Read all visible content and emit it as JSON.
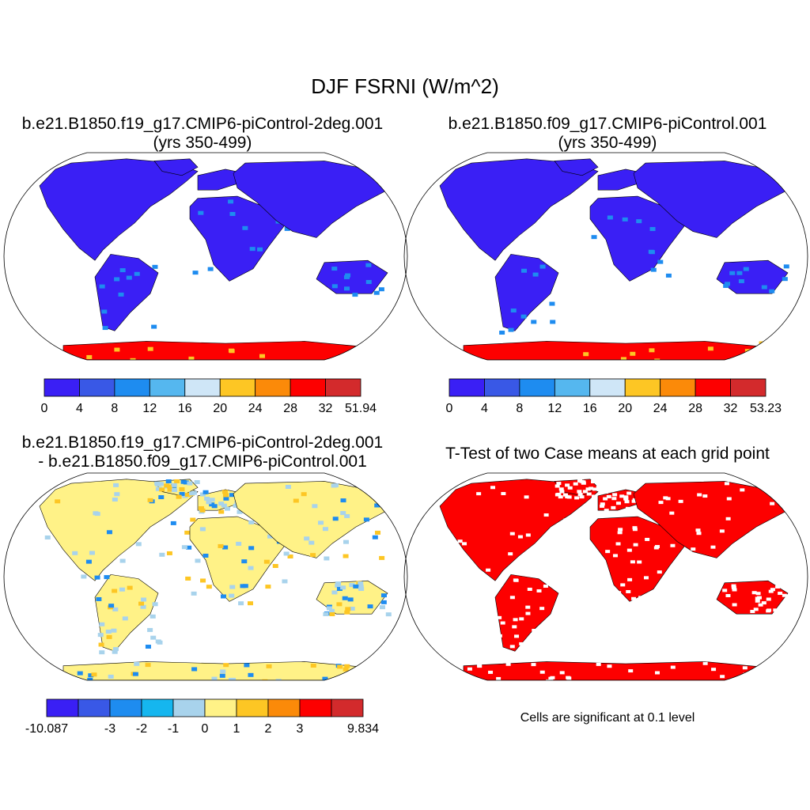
{
  "title": "DJF FSRNI (W/m^2)",
  "panels": [
    {
      "id": "case1",
      "title_line1": "b.e21.B1850.f19_g17.CMIP6-piControl-2deg.001",
      "title_line2": "(yrs 350-499)",
      "colorbar": {
        "colors": [
          "#3a1ff5",
          "#3958e6",
          "#1e8cf0",
          "#55b7ef",
          "#cfe6f7",
          "#fdc624",
          "#fb8a09",
          "#fd0000",
          "#d32a2c"
        ],
        "labels": [
          "0",
          "4",
          "8",
          "12",
          "16",
          "20",
          "24",
          "28",
          "32",
          "51.94"
        ]
      }
    },
    {
      "id": "case2",
      "title_line1": "b.e21.B1850.f09_g17.CMIP6-piControl.001",
      "title_line2": "(yrs 350-499)",
      "colorbar": {
        "colors": [
          "#3a1ff5",
          "#3958e6",
          "#1e8cf0",
          "#55b7ef",
          "#cfe6f7",
          "#fdc624",
          "#fb8a09",
          "#fd0000",
          "#d32a2c"
        ],
        "labels": [
          "0",
          "4",
          "8",
          "12",
          "16",
          "20",
          "24",
          "28",
          "32",
          "53.23"
        ]
      }
    },
    {
      "id": "diff",
      "title_line1": "b.e21.B1850.f19_g17.CMIP6-piControl-2deg.001",
      "title_line2": "- b.e21.B1850.f09_g17.CMIP6-piControl.001",
      "colorbar": {
        "colors": [
          "#3a1ff5",
          "#3958e6",
          "#1e8cf0",
          "#15b6ef",
          "#a8d3ec",
          "#fff287",
          "#fdc624",
          "#fb8a09",
          "#fd0000",
          "#d32a2c"
        ],
        "labels": [
          "-10.087",
          "",
          "-3",
          "-2",
          "-1",
          "0",
          "1",
          "2",
          "3",
          "",
          "9.834"
        ]
      }
    },
    {
      "id": "ttest",
      "title_line1": "T-Test of two Case means at each grid point",
      "footnote": "Cells are significant at 0.1 level"
    }
  ],
  "map_colors": {
    "land_low": "#3a1ff5",
    "land_mid": "#1e8cf0",
    "ice_high": "#fd0000",
    "diff_pos": "#fff287",
    "diff_neg": "#a8d3ec",
    "signif": "#fd0000",
    "coast": "#000000"
  }
}
